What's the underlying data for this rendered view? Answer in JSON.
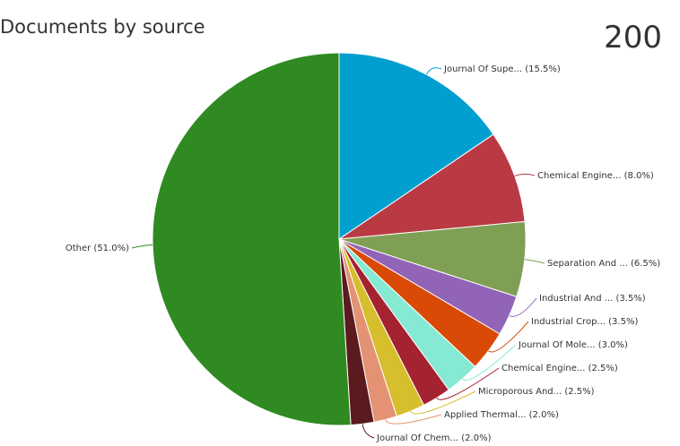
{
  "header": {
    "title": "Documents by source",
    "total": "200"
  },
  "chart_data": {
    "type": "pie",
    "title": "Documents by source",
    "slices": [
      {
        "label": "Journal Of Supe...",
        "percent": 15.5,
        "display": "Journal Of Supe... (15.5%)",
        "color": "#009fd0"
      },
      {
        "label": "Chemical Engine...",
        "percent": 8.0,
        "display": "Chemical Engine... (8.0%)",
        "color": "#b93a43"
      },
      {
        "label": "Separation And ...",
        "percent": 6.5,
        "display": "Separation And ... (6.5%)",
        "color": "#7f9f55"
      },
      {
        "label": "Industrial And ...",
        "percent": 3.5,
        "display": "Industrial And ... (3.5%)",
        "color": "#9264b7"
      },
      {
        "label": "Industrial Crop...",
        "percent": 3.5,
        "display": "Industrial Crop... (3.5%)",
        "color": "#d84a06"
      },
      {
        "label": "Journal Of Mole...",
        "percent": 3.0,
        "display": "Journal Of Mole... (3.0%)",
        "color": "#86e9d4"
      },
      {
        "label": "Chemical Engine...",
        "percent": 2.5,
        "display": "Chemical Engine... (2.5%)",
        "color": "#a52230"
      },
      {
        "label": "Microporous And...",
        "percent": 2.5,
        "display": "Microporous And... (2.5%)",
        "color": "#d6be2c"
      },
      {
        "label": "Applied Thermal...",
        "percent": 2.0,
        "display": "Applied Thermal... (2.0%)",
        "color": "#e39373"
      },
      {
        "label": "Journal Of Chem...",
        "percent": 2.0,
        "display": "Journal Of Chem... (2.0%)",
        "color": "#5b1a1e"
      },
      {
        "label": "Other",
        "percent": 51.0,
        "display": "Other (51.0%)",
        "color": "#2f8a22"
      }
    ]
  }
}
